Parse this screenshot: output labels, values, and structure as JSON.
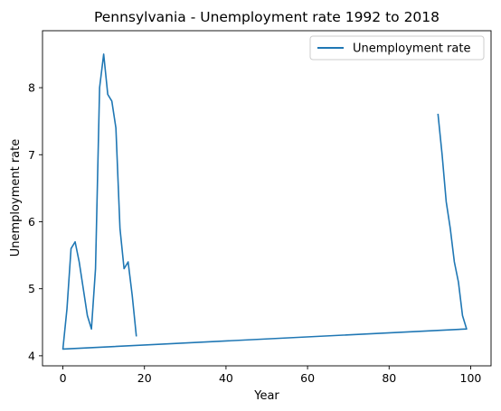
{
  "chart_data": {
    "type": "line",
    "title": "Pennsylvania - Unemployment rate 1992 to 2018",
    "xlabel": "Year",
    "ylabel": "Unemployment rate",
    "xlim": [
      -5,
      105
    ],
    "ylim": [
      3.85,
      8.85
    ],
    "x_ticks": [
      0,
      20,
      40,
      60,
      80,
      100
    ],
    "y_ticks": [
      4,
      5,
      6,
      7,
      8
    ],
    "grid": false,
    "legend_position": "top-right",
    "colors": {
      "series": "#1f77b4",
      "axes": "#000000",
      "legend_border": "#cccccc"
    },
    "series": [
      {
        "name": "Unemployment rate",
        "x": [
          92,
          93,
          94,
          95,
          96,
          97,
          98,
          99,
          0,
          1,
          2,
          3,
          4,
          5,
          6,
          7,
          8,
          9,
          10,
          11,
          12,
          13,
          14,
          15,
          16,
          17,
          18
        ],
        "y": [
          7.6,
          7.0,
          6.3,
          5.9,
          5.4,
          5.1,
          4.6,
          4.4,
          4.1,
          4.7,
          5.6,
          5.7,
          5.4,
          5.0,
          4.6,
          4.4,
          5.3,
          8.0,
          8.5,
          7.9,
          7.8,
          7.4,
          5.9,
          5.3,
          5.4,
          4.9,
          4.3
        ]
      }
    ]
  }
}
